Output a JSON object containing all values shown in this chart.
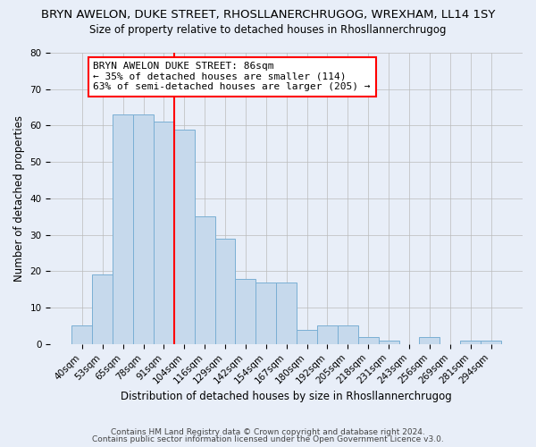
{
  "title": "BRYN AWELON, DUKE STREET, RHOSLLANERCHRUGOG, WREXHAM, LL14 1SY",
  "subtitle": "Size of property relative to detached houses in Rhosllannerchrugog",
  "xlabel": "Distribution of detached houses by size in Rhosllannerchrugog",
  "ylabel": "Number of detached properties",
  "categories": [
    "40sqm",
    "53sqm",
    "65sqm",
    "78sqm",
    "91sqm",
    "104sqm",
    "116sqm",
    "129sqm",
    "142sqm",
    "154sqm",
    "167sqm",
    "180sqm",
    "192sqm",
    "205sqm",
    "218sqm",
    "231sqm",
    "243sqm",
    "256sqm",
    "269sqm",
    "281sqm",
    "294sqm"
  ],
  "values": [
    5,
    19,
    63,
    63,
    61,
    59,
    35,
    29,
    18,
    17,
    17,
    4,
    5,
    5,
    2,
    1,
    0,
    2,
    0,
    1,
    1
  ],
  "bar_color": "#c6d9ec",
  "bar_edge_color": "#7aafd4",
  "vline_x_index": 4,
  "vline_color": "red",
  "annotation_lines": [
    "BRYN AWELON DUKE STREET: 86sqm",
    "← 35% of detached houses are smaller (114)",
    "63% of semi-detached houses are larger (205) →"
  ],
  "ylim": [
    0,
    80
  ],
  "yticks": [
    0,
    10,
    20,
    30,
    40,
    50,
    60,
    70,
    80
  ],
  "footer_line1": "Contains HM Land Registry data © Crown copyright and database right 2024.",
  "footer_line2": "Contains public sector information licensed under the Open Government Licence v3.0.",
  "bg_color": "#e8eef8",
  "plot_bg_color": "#e8eef8",
  "title_fontsize": 9.5,
  "subtitle_fontsize": 8.5,
  "xlabel_fontsize": 8.5,
  "ylabel_fontsize": 8.5,
  "tick_fontsize": 7.5,
  "footer_fontsize": 6.5,
  "ann_fontsize": 8
}
